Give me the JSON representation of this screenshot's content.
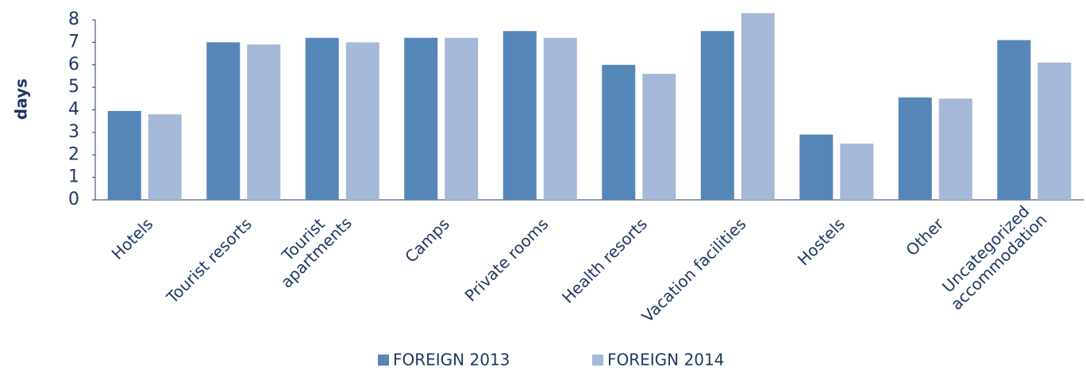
{
  "chart_data": {
    "type": "bar",
    "y_label": "days",
    "categories": [
      "Hotels",
      "Tourist resorts",
      "Tourist\napartments",
      "Camps",
      "Private rooms",
      "Health resorts",
      "Vacation facilities",
      "Hostels",
      "Other",
      "Uncategorized\naccommodation"
    ],
    "series": [
      {
        "name": "FOREIGN 2013",
        "color": "#5586b8",
        "values": [
          3.95,
          7.0,
          7.2,
          7.2,
          7.5,
          6.0,
          7.5,
          2.9,
          4.55,
          7.1
        ]
      },
      {
        "name": "FOREIGN 2014",
        "color": "#a5b8d8",
        "values": [
          3.8,
          6.9,
          7.0,
          7.2,
          7.2,
          5.6,
          8.3,
          2.5,
          4.5,
          6.1
        ]
      }
    ],
    "ylim": [
      0,
      8
    ],
    "yticks": [
      0,
      1,
      2,
      3,
      4,
      5,
      6,
      7,
      8
    ],
    "grid": false,
    "legend": "bottom"
  }
}
